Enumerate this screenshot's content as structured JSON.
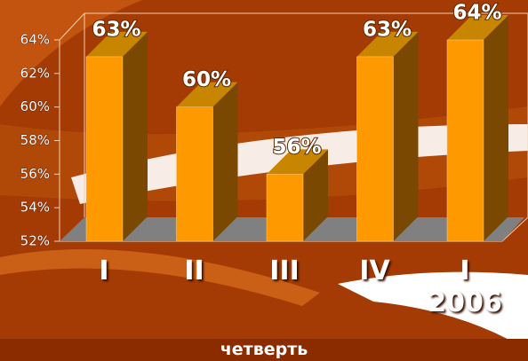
{
  "chart_data": {
    "type": "bar3d",
    "categories": [
      "I",
      "II",
      "III",
      "IV",
      "I\n2006"
    ],
    "values": [
      63,
      60,
      56,
      63,
      64
    ],
    "value_labels": [
      "63%",
      "60%",
      "56%",
      "63%",
      "64%"
    ],
    "ylim": [
      52,
      64
    ],
    "yticks": [
      {
        "value": 52,
        "label": "52%"
      },
      {
        "value": 54,
        "label": "54%"
      },
      {
        "value": 56,
        "label": "56%"
      },
      {
        "value": 58,
        "label": "58%"
      },
      {
        "value": 60,
        "label": "60%"
      },
      {
        "value": 62,
        "label": "62%"
      },
      {
        "value": 64,
        "label": "64%"
      }
    ],
    "x_label": "четверть",
    "color": "#ff9900"
  }
}
